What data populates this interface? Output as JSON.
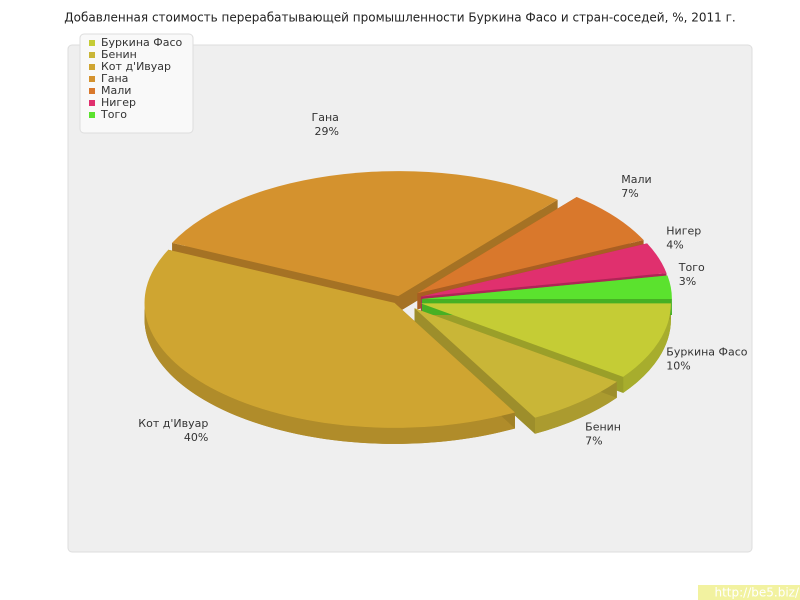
{
  "chart_data": {
    "type": "pie3d",
    "title": "Добавленная стоимость перерабатывающей промышленности Буркина Фасо и стран-соседей, %, 2011 г.",
    "categories": [
      "Буркина Фасо",
      "Бенин",
      "Кот д'Ивуар",
      "Гана",
      "Мали",
      "Нигер",
      "Того"
    ],
    "values": [
      10,
      7,
      40,
      29,
      7,
      4,
      3
    ],
    "value_labels": [
      "10%",
      "7%",
      "40%",
      "29%",
      "7%",
      "4%",
      "3%"
    ],
    "colors": [
      "#c5cc35",
      "#c9b637",
      "#cfa531",
      "#d4922e",
      "#d9782c",
      "#e0306e",
      "#5be22e"
    ],
    "legend": "top-left"
  },
  "watermark": "http://be5.biz/"
}
